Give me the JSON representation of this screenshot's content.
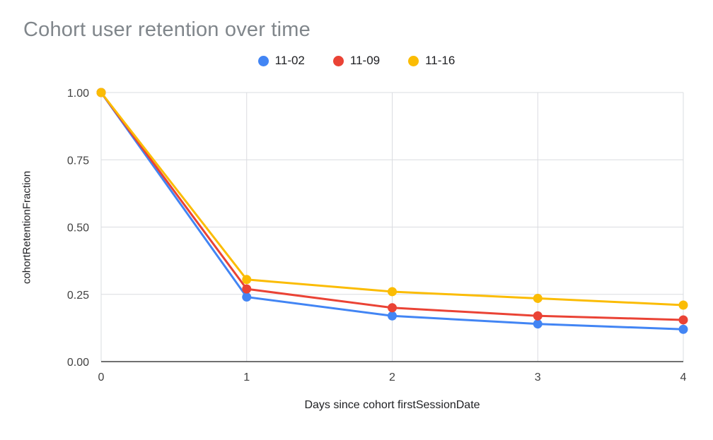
{
  "chart_data": {
    "type": "line",
    "title": "Cohort user retention over time",
    "xlabel": "Days since cohort firstSessionDate",
    "ylabel": "cohortRetentionFraction",
    "x": [
      0,
      1,
      2,
      3,
      4
    ],
    "series": [
      {
        "name": "11-02",
        "color": "#4285F4",
        "values": [
          1.0,
          0.24,
          0.17,
          0.14,
          0.12
        ]
      },
      {
        "name": "11-09",
        "color": "#EA4335",
        "values": [
          1.0,
          0.27,
          0.2,
          0.17,
          0.155
        ]
      },
      {
        "name": "11-16",
        "color": "#FBBC04",
        "values": [
          1.0,
          0.305,
          0.26,
          0.235,
          0.21
        ]
      }
    ],
    "xlim": [
      0,
      4
    ],
    "ylim": [
      0.0,
      1.0
    ],
    "xticks": [
      0,
      1,
      2,
      3,
      4
    ],
    "yticks": [
      0.0,
      0.25,
      0.5,
      0.75,
      1.0
    ],
    "grid": true,
    "legend_position": "top",
    "colors": {
      "gridline": "#dadce0",
      "baseline": "#424242",
      "tick_label": "#424242",
      "title": "#80868b",
      "background": "#ffffff"
    }
  }
}
